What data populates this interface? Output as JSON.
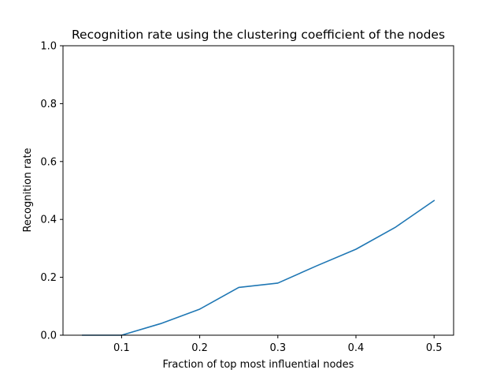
{
  "chart_data": {
    "type": "line",
    "title": "Recognition rate using the clustering coefficient of the nodes",
    "xlabel": "Fraction of top most influential nodes",
    "ylabel": "Recognition rate",
    "xlim": [
      0.025,
      0.525
    ],
    "ylim": [
      0.0,
      1.0
    ],
    "xticks": [
      0.1,
      0.2,
      0.3,
      0.4,
      0.5
    ],
    "xtick_labels": [
      "0.1",
      "0.2",
      "0.3",
      "0.4",
      "0.5"
    ],
    "yticks": [
      0.0,
      0.2,
      0.4,
      0.6,
      0.8,
      1.0
    ],
    "ytick_labels": [
      "0.0",
      "0.2",
      "0.4",
      "0.6",
      "0.8",
      "1.0"
    ],
    "grid": false,
    "line_color": "#1f77b4",
    "series": [
      {
        "x": [
          0.05,
          0.1,
          0.15,
          0.2,
          0.25,
          0.3,
          0.35,
          0.4,
          0.45,
          0.5
        ],
        "y": [
          0.0,
          0.0,
          0.04,
          0.09,
          0.165,
          0.18,
          0.24,
          0.297,
          0.372,
          0.465
        ]
      }
    ]
  }
}
